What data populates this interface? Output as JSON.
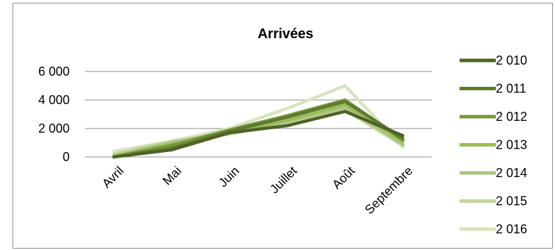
{
  "chart_data": {
    "type": "line",
    "title": "Arrivées",
    "categories": [
      "Avril",
      "Mai",
      "Juin",
      "Juillet",
      "Août",
      "Septembre"
    ],
    "ylim": [
      0,
      6000
    ],
    "yticks": [
      "0",
      "2 000",
      "4 000",
      "6 000"
    ],
    "grid": true,
    "legend_position": "right",
    "series": [
      {
        "name": "2 010",
        "color": "#4f6228",
        "values": [
          0,
          500,
          1700,
          2200,
          3200,
          1500
        ]
      },
      {
        "name": "2 011",
        "color": "#5f7a30",
        "values": [
          0,
          600,
          1800,
          2800,
          3900,
          1300
        ]
      },
      {
        "name": "2 012",
        "color": "#77963c",
        "values": [
          0,
          800,
          1900,
          2900,
          4000,
          1200
        ]
      },
      {
        "name": "2 013",
        "color": "#9bbb59",
        "values": [
          0,
          900,
          1700,
          2600,
          3700,
          1100
        ]
      },
      {
        "name": "2 014",
        "color": "#a9c47f",
        "values": [
          100,
          1000,
          1800,
          2500,
          3500,
          900
        ]
      },
      {
        "name": "2 015",
        "color": "#c3d69b",
        "values": [
          200,
          1100,
          1600,
          2400,
          3300,
          800
        ]
      },
      {
        "name": "2 016",
        "color": "#d7e4bd",
        "values": [
          400,
          1100,
          2000,
          3400,
          5000,
          700
        ]
      }
    ]
  }
}
